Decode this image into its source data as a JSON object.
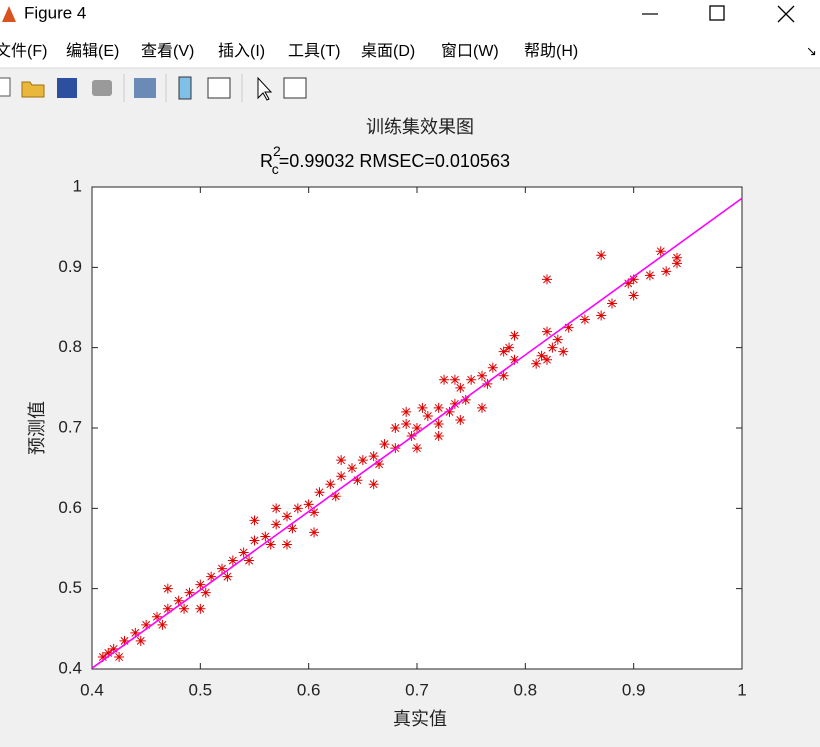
{
  "window": {
    "title": "Figure 4",
    "menu": [
      "文件(F)",
      "编辑(E)",
      "查看(V)",
      "插入(I)",
      "工具(T)",
      "桌面(D)",
      "窗口(W)",
      "帮助(H)"
    ]
  },
  "chart_data": {
    "type": "scatter",
    "title": "训练集效果图",
    "subtitle": {
      "base": "R",
      "sup": "2",
      "sub": "c",
      "text": "=0.99032  RMSEC=0.010563"
    },
    "xlabel": "真实值",
    "ylabel": "预测值",
    "xlim": [
      0.4,
      1
    ],
    "ylim": [
      0.4,
      1
    ],
    "xticks": [
      0.4,
      0.5,
      0.6,
      0.7,
      0.8,
      0.9,
      1
    ],
    "yticks": [
      0.4,
      0.5,
      0.6,
      0.7,
      0.8,
      0.9,
      1
    ],
    "series": [
      {
        "type": "scatter",
        "color": "#e00000",
        "x": [
          0.87,
          0.925,
          0.94,
          0.94,
          0.93,
          0.915,
          0.9,
          0.895,
          0.9,
          0.88,
          0.87,
          0.855,
          0.84,
          0.83,
          0.82,
          0.825,
          0.835,
          0.81,
          0.815,
          0.82,
          0.82,
          0.79,
          0.785,
          0.78,
          0.79,
          0.77,
          0.76,
          0.765,
          0.78,
          0.75,
          0.74,
          0.725,
          0.745,
          0.76,
          0.735,
          0.72,
          0.73,
          0.74,
          0.705,
          0.71,
          0.72,
          0.7,
          0.69,
          0.695,
          0.68,
          0.67,
          0.68,
          0.66,
          0.665,
          0.65,
          0.64,
          0.645,
          0.63,
          0.62,
          0.625,
          0.61,
          0.6,
          0.605,
          0.59,
          0.58,
          0.585,
          0.57,
          0.56,
          0.565,
          0.55,
          0.54,
          0.545,
          0.53,
          0.52,
          0.525,
          0.51,
          0.5,
          0.505,
          0.49,
          0.48,
          0.485,
          0.47,
          0.46,
          0.465,
          0.45,
          0.44,
          0.445,
          0.43,
          0.42,
          0.425,
          0.41,
          0.415,
          0.63,
          0.66,
          0.57,
          0.58,
          0.47,
          0.5,
          0.72,
          0.735,
          0.69,
          0.7,
          0.605,
          0.55
        ],
        "y": [
          0.915,
          0.92,
          0.912,
          0.905,
          0.895,
          0.89,
          0.885,
          0.88,
          0.865,
          0.855,
          0.84,
          0.835,
          0.825,
          0.81,
          0.82,
          0.8,
          0.795,
          0.78,
          0.79,
          0.785,
          0.885,
          0.815,
          0.8,
          0.795,
          0.785,
          0.775,
          0.765,
          0.755,
          0.765,
          0.76,
          0.75,
          0.76,
          0.735,
          0.725,
          0.73,
          0.725,
          0.72,
          0.71,
          0.725,
          0.715,
          0.705,
          0.7,
          0.705,
          0.69,
          0.7,
          0.68,
          0.675,
          0.665,
          0.655,
          0.66,
          0.65,
          0.635,
          0.64,
          0.63,
          0.615,
          0.62,
          0.605,
          0.595,
          0.6,
          0.59,
          0.575,
          0.58,
          0.565,
          0.555,
          0.56,
          0.545,
          0.535,
          0.535,
          0.525,
          0.515,
          0.515,
          0.505,
          0.495,
          0.495,
          0.485,
          0.475,
          0.475,
          0.465,
          0.455,
          0.455,
          0.445,
          0.435,
          0.435,
          0.425,
          0.415,
          0.415,
          0.42,
          0.66,
          0.63,
          0.6,
          0.555,
          0.5,
          0.475,
          0.69,
          0.76,
          0.72,
          0.675,
          0.57,
          0.585
        ]
      },
      {
        "type": "line",
        "color": "#ff00ff",
        "x": [
          0.4,
          1
        ],
        "y": [
          0.401,
          0.986
        ]
      }
    ]
  }
}
